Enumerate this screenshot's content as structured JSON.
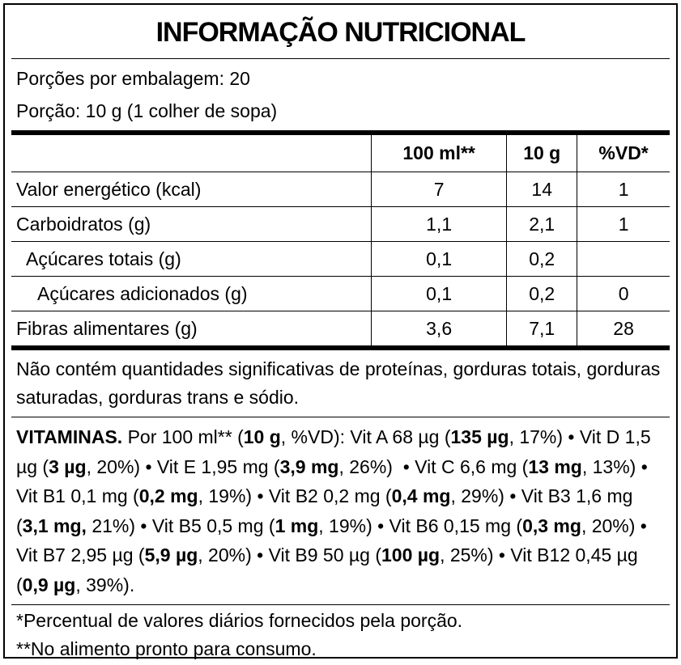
{
  "title": "INFORMAÇÃO NUTRICIONAL",
  "servings": [
    "Porções por embalagem: 20",
    "Porção: 10 g (1 colher de sopa)"
  ],
  "table": {
    "header": [
      null,
      "100 ml**",
      "10 g",
      "%VD*"
    ],
    "rows": [
      [
        "Valor energético (kcal)",
        "7",
        "14",
        "1"
      ],
      [
        "Carboidratos (g)",
        "1,1",
        "2,1",
        "1"
      ],
      [
        "Açúcares totais (g)",
        "0,1",
        "0,2",
        null
      ],
      [
        "Açúcares adicionados (g)",
        "0,1",
        "0,2",
        "0"
      ],
      [
        "Fibras alimentares (g)",
        "3,6",
        "7,1",
        "28"
      ]
    ]
  },
  "note": "Não contém quantidades significativas de proteínas, gorduras totais, gorduras saturadas, gorduras trans e sódio.",
  "vitamins": {
    "segments": [
      {
        "text": "VITAMINAS.",
        "bold": true
      },
      {
        "text": " Por 100 ml** (",
        "bold": false
      },
      {
        "text": "10 g",
        "bold": true
      },
      {
        "text": ", %VD): Vit A 68 µg (",
        "bold": false
      },
      {
        "text": "135 µg",
        "bold": true
      },
      {
        "text": ", 17%) • Vit D 1,5 µg (",
        "bold": false
      },
      {
        "text": "3 µg",
        "bold": true
      },
      {
        "text": ", 20%) • Vit E 1,95 mg (",
        "bold": false
      },
      {
        "text": "3,9 mg",
        "bold": true
      },
      {
        "text": ", 26%)  • Vit C 6,6 mg (",
        "bold": false
      },
      {
        "text": "13 mg",
        "bold": true
      },
      {
        "text": ", 13%) • Vit B1 0,1 mg (",
        "bold": false
      },
      {
        "text": "0,2 mg",
        "bold": true
      },
      {
        "text": ", 19%) • Vit B2 0,2 mg (",
        "bold": false
      },
      {
        "text": "0,4 mg",
        "bold": true
      },
      {
        "text": ", 29%) • Vit B3 1,6 mg (",
        "bold": false
      },
      {
        "text": "3,1 mg,",
        "bold": true
      },
      {
        "text": " 21%) • Vit B5 0,5 mg (",
        "bold": false
      },
      {
        "text": "1 mg",
        "bold": true
      },
      {
        "text": ", 19%) • Vit B6 0,15 mg (",
        "bold": false
      },
      {
        "text": "0,3 mg",
        "bold": true
      },
      {
        "text": ", 20%) • Vit B7 2,95 µg (",
        "bold": false
      },
      {
        "text": "5,9 µg",
        "bold": true
      },
      {
        "text": ", 20%) • Vit B9 50 µg (",
        "bold": false
      },
      {
        "text": "100 µg",
        "bold": true
      },
      {
        "text": ", 25%) • Vit B12 0,45 µg (",
        "bold": false
      },
      {
        "text": "0,9 µg",
        "bold": true
      },
      {
        "text": ", 39%).",
        "bold": false
      }
    ]
  },
  "footnotes": [
    "*Percentual de valores diários fornecidos pela porção.",
    "**No alimento pronto para consumo."
  ]
}
